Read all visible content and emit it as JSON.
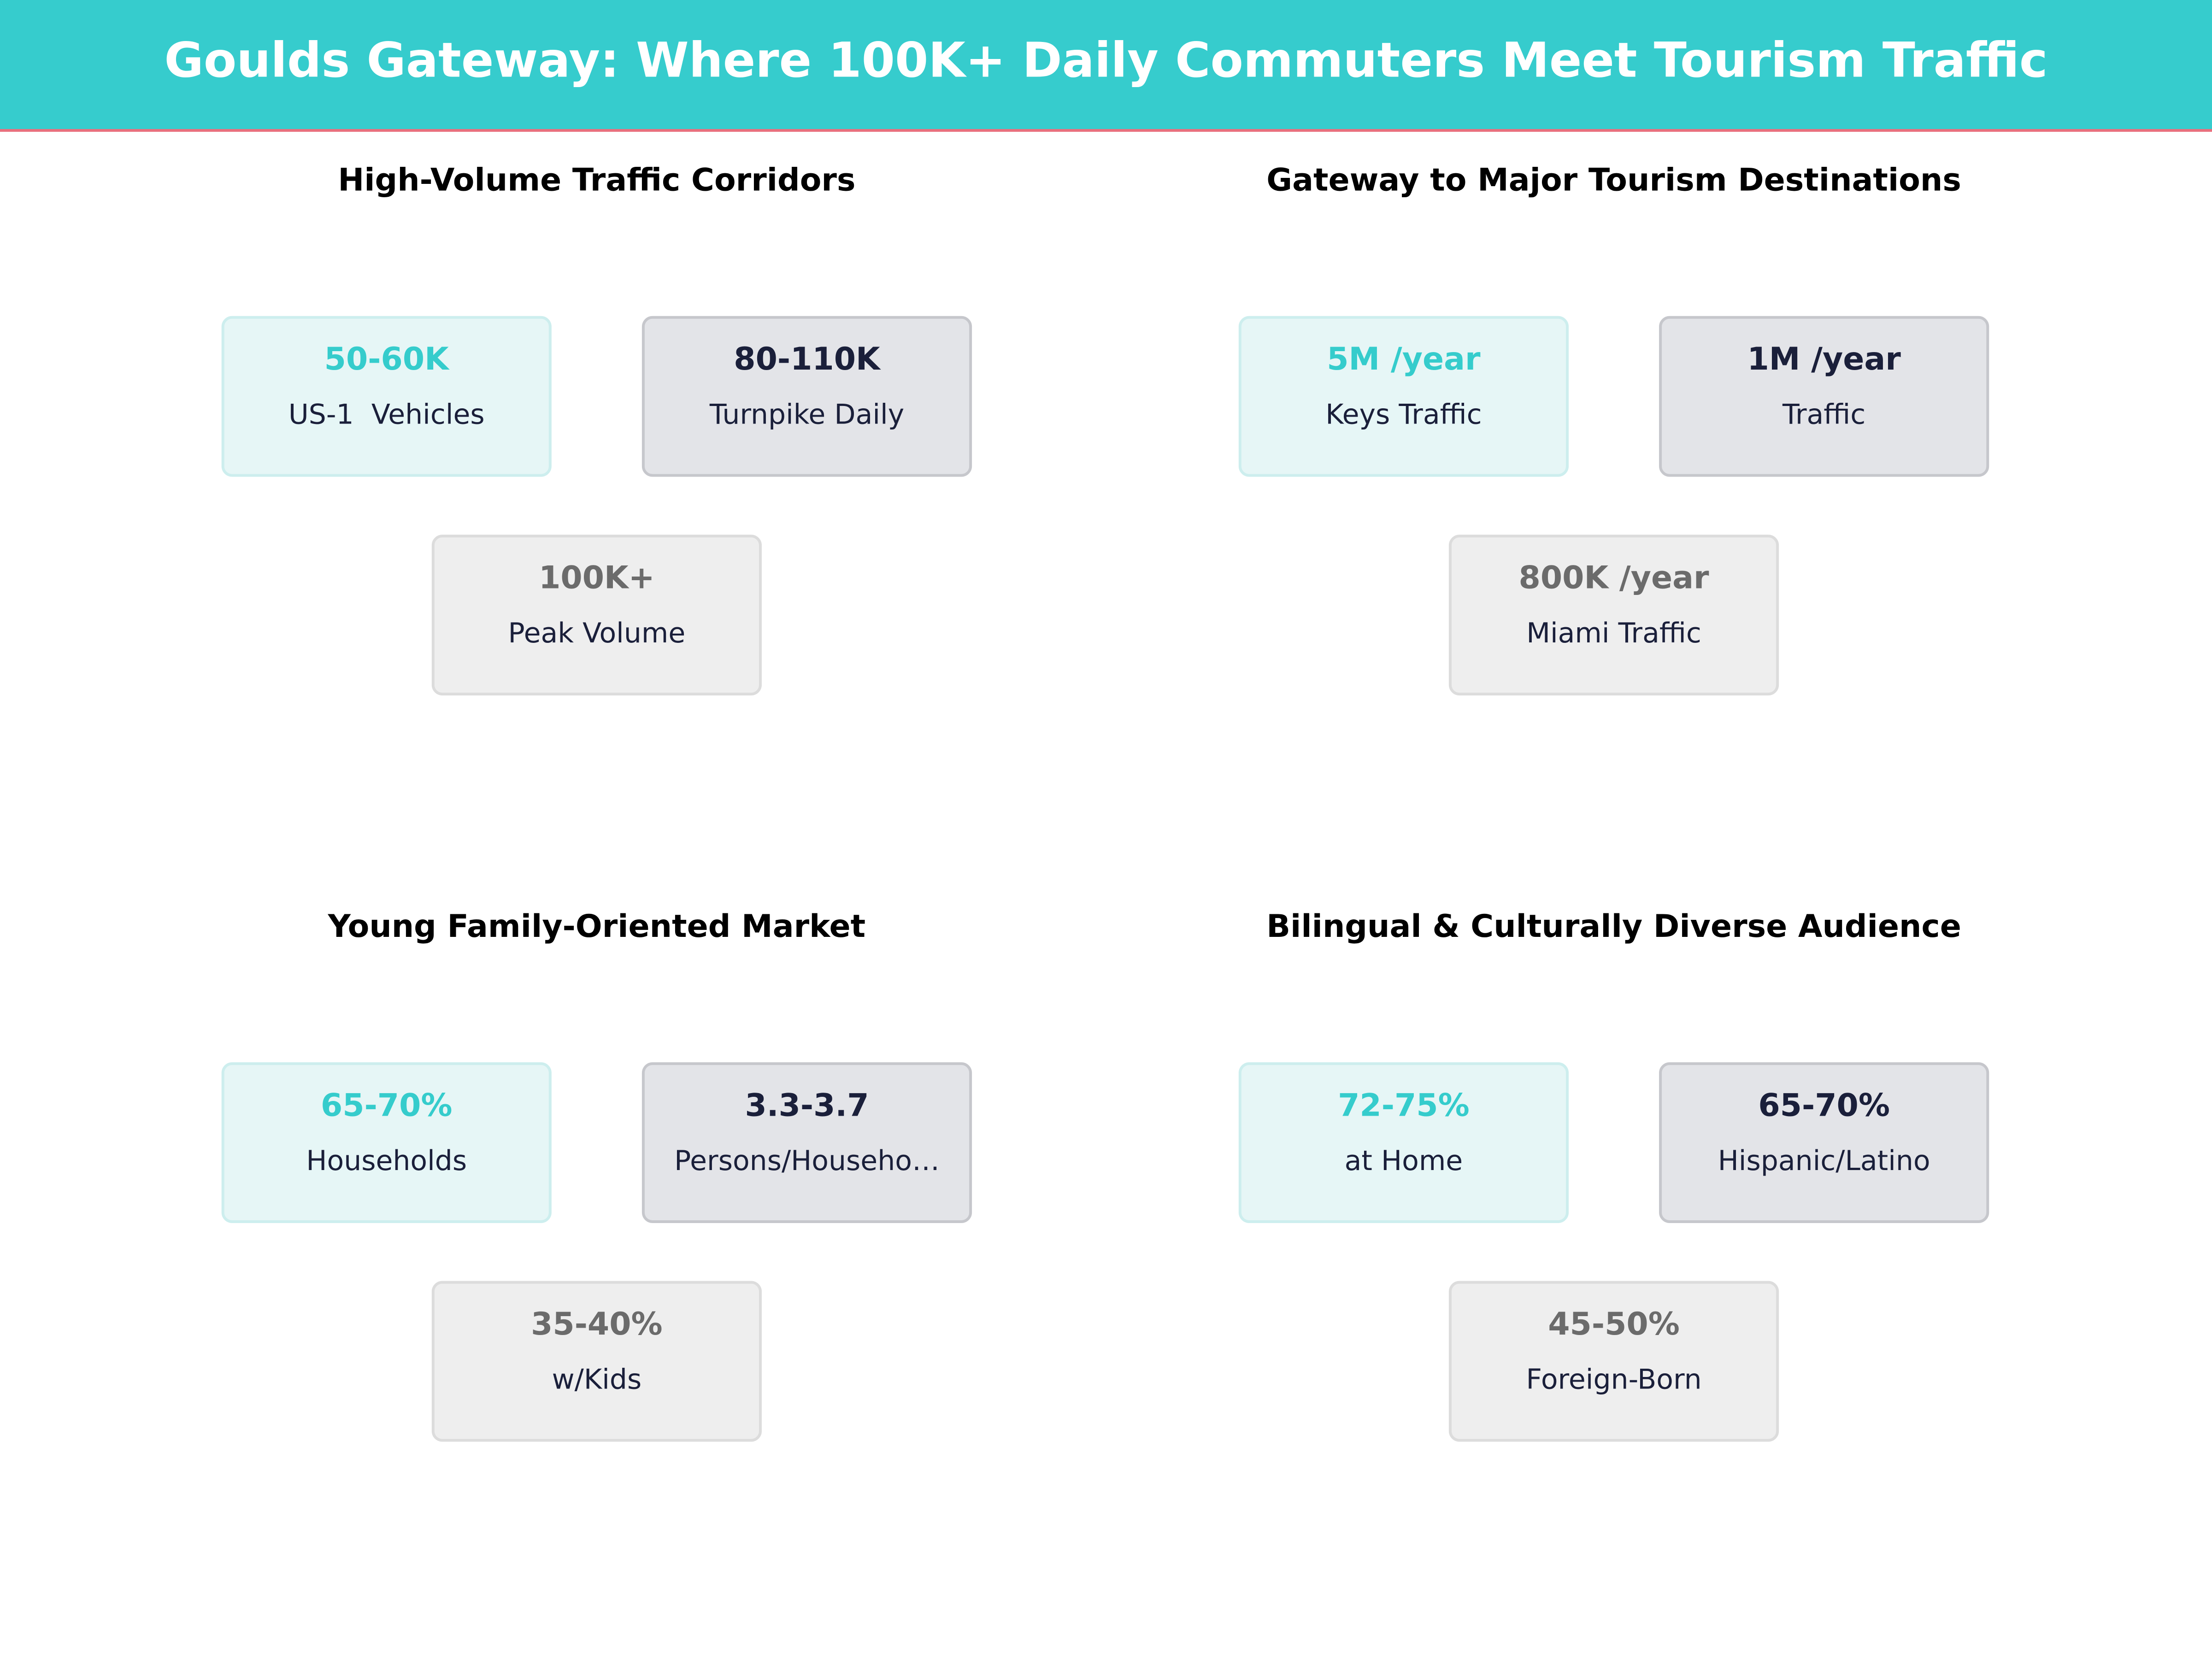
{
  "header": {
    "title": "Goulds Gateway: Where 100K+ Daily Commuters Meet Tourism Traffic"
  },
  "panels": [
    {
      "title": "High-Volume Traffic Corridors",
      "cards": [
        {
          "value": "50-60K",
          "label": "US-1  Vehicles"
        },
        {
          "value": "80-110K",
          "label": "Turnpike Daily"
        },
        {
          "value": "100K+",
          "label": "Peak Volume"
        }
      ]
    },
    {
      "title": "Gateway to Major Tourism Destinations",
      "cards": [
        {
          "value": "5M /year",
          "label": "Keys Traffic"
        },
        {
          "value": "1M /year",
          "label": "Traffic"
        },
        {
          "value": "800K /year",
          "label": "Miami Traffic"
        }
      ]
    },
    {
      "title": "Young Family-Oriented Market",
      "cards": [
        {
          "value": "65-70%",
          "label": "Households"
        },
        {
          "value": "3.3-3.7",
          "label": "Persons/Househo…"
        },
        {
          "value": "35-40%",
          "label": "w/Kids"
        }
      ]
    },
    {
      "title": "Bilingual & Culturally Diverse Audience",
      "cards": [
        {
          "value": "72-75%",
          "label": "at Home"
        },
        {
          "value": "65-70%",
          "label": "Hispanic/Latino"
        },
        {
          "value": "45-50%",
          "label": "Foreign-Born"
        }
      ]
    }
  ]
}
